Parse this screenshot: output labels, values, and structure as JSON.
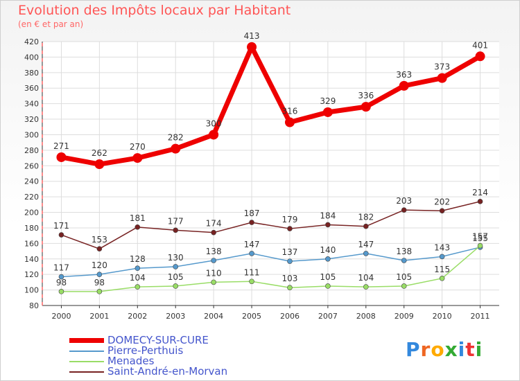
{
  "title": "Evolution des Impôts locaux par Habitant",
  "subtitle": "(en € et par an)",
  "brand": "Proxiti",
  "chart_data": {
    "type": "line",
    "title": "Evolution des Impôts locaux par Habitant",
    "subtitle": "(en € et par an)",
    "x": [
      "2000",
      "2001",
      "2002",
      "2003",
      "2004",
      "2005",
      "2006",
      "2007",
      "2008",
      "2009",
      "2010",
      "2011"
    ],
    "ylim": [
      80,
      420
    ],
    "yticks": [
      80,
      100,
      120,
      140,
      160,
      180,
      200,
      220,
      240,
      260,
      280,
      300,
      320,
      340,
      360,
      380,
      400,
      420
    ],
    "grid": true,
    "legend_position": "bottom-left",
    "series": [
      {
        "name": "DOMECY-SUR-CURE",
        "color": "#ee0000",
        "values": [
          271,
          262,
          270,
          282,
          300,
          413,
          316,
          329,
          336,
          363,
          373,
          401
        ]
      },
      {
        "name": "Pierre-Perthuis",
        "color": "#5599cc",
        "values": [
          117,
          120,
          128,
          130,
          138,
          147,
          137,
          140,
          147,
          138,
          143,
          155
        ]
      },
      {
        "name": "Menades",
        "color": "#99dd66",
        "values": [
          98,
          98,
          104,
          105,
          110,
          111,
          103,
          105,
          104,
          105,
          115,
          157
        ]
      },
      {
        "name": "Saint-André-en-Morvan",
        "color": "#772222",
        "values": [
          171,
          153,
          181,
          177,
          174,
          187,
          179,
          184,
          182,
          203,
          202,
          214
        ]
      }
    ]
  }
}
